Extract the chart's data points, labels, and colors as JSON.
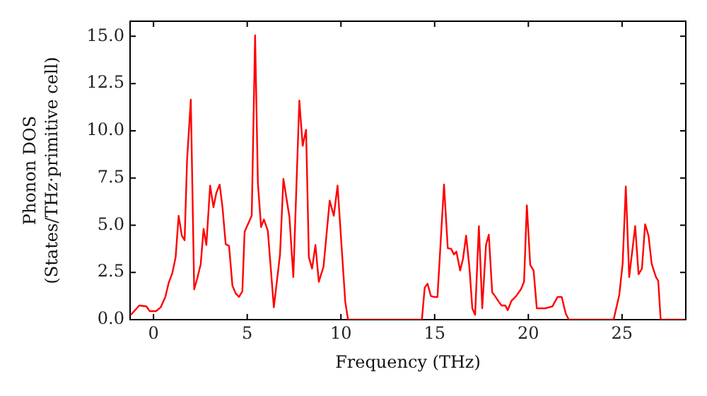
{
  "chart_data": {
    "type": "line",
    "xlabel": "Frequency (THz)",
    "ylabel": "Phonon DOS\n(States/THz·primitive cell)",
    "xlim": [
      -1.25,
      28.4
    ],
    "xticks": [
      0,
      5,
      10,
      15,
      20,
      25
    ],
    "ylim": [
      0,
      15.8
    ],
    "yticks": [
      {
        "value": 0,
        "label": "0.0"
      },
      {
        "value": 2.5,
        "label": "2.5"
      },
      {
        "value": 5,
        "label": "5.0"
      },
      {
        "value": 7.5,
        "label": "7.5"
      },
      {
        "value": 10,
        "label": "10.0"
      },
      {
        "value": 12.5,
        "label": "12.5"
      },
      {
        "value": 15,
        "label": "15.0"
      }
    ],
    "grid": false,
    "legend": false,
    "marker": "none",
    "line_style": "solid",
    "series": [
      {
        "color": "#ff0000",
        "x": [
          -1.21,
          -0.76,
          -0.38,
          -0.2,
          0.13,
          0.38,
          0.63,
          0.81,
          1.0,
          1.18,
          1.34,
          1.51,
          1.66,
          1.79,
          1.99,
          2.17,
          2.34,
          2.52,
          2.67,
          2.82,
          3.02,
          3.2,
          3.35,
          3.53,
          3.68,
          3.85,
          4.03,
          4.21,
          4.38,
          4.56,
          4.74,
          4.86,
          5.24,
          5.42,
          5.57,
          5.74,
          5.89,
          6.1,
          6.42,
          6.75,
          6.93,
          7.25,
          7.46,
          7.78,
          7.96,
          8.14,
          8.29,
          8.46,
          8.64,
          8.82,
          9.07,
          9.4,
          9.62,
          9.82,
          10.08,
          10.23,
          10.38,
          14.32,
          14.47,
          14.62,
          14.8,
          14.97,
          15.15,
          15.5,
          15.7,
          15.88,
          16.03,
          16.16,
          16.36,
          16.51,
          16.68,
          16.86,
          17.01,
          17.16,
          17.36,
          17.54,
          17.74,
          17.89,
          18.07,
          18.22,
          18.42,
          18.57,
          18.77,
          18.9,
          19.1,
          19.35,
          19.6,
          19.77,
          19.92,
          20.1,
          20.28,
          20.45,
          20.9,
          21.28,
          21.56,
          21.78,
          22.0,
          22.16,
          24.55,
          24.85,
          25.03,
          25.2,
          25.38,
          25.7,
          25.88,
          26.06,
          26.23,
          26.41,
          26.58,
          26.81,
          26.93,
          27.06,
          28.3
        ],
        "values": [
          0.25,
          0.75,
          0.7,
          0.45,
          0.45,
          0.65,
          1.2,
          1.95,
          2.45,
          3.3,
          5.5,
          4.45,
          4.2,
          8.45,
          11.65,
          1.6,
          2.2,
          2.95,
          4.8,
          3.95,
          7.1,
          5.95,
          6.7,
          7.15,
          5.95,
          4.0,
          3.9,
          1.8,
          1.4,
          1.2,
          1.5,
          4.65,
          5.5,
          15.05,
          7.2,
          4.9,
          5.3,
          4.7,
          0.65,
          3.45,
          7.45,
          5.45,
          2.25,
          11.6,
          9.2,
          10.05,
          3.3,
          2.7,
          3.95,
          2.0,
          2.8,
          6.3,
          5.5,
          7.1,
          3.2,
          0.95,
          0,
          0,
          1.7,
          1.9,
          1.25,
          1.2,
          1.2,
          7.15,
          3.78,
          3.75,
          3.45,
          3.6,
          2.6,
          3.2,
          4.45,
          2.7,
          0.6,
          0.25,
          4.95,
          0.6,
          3.95,
          4.5,
          1.45,
          1.25,
          0.95,
          0.75,
          0.75,
          0.5,
          1.0,
          1.25,
          1.6,
          2.0,
          6.05,
          2.9,
          2.6,
          0.6,
          0.6,
          0.7,
          1.2,
          1.2,
          0.3,
          0,
          0,
          1.3,
          2.95,
          7.05,
          2.25,
          4.95,
          2.4,
          2.7,
          5.05,
          4.45,
          2.95,
          2.25,
          2.05,
          0,
          0
        ]
      }
    ]
  }
}
